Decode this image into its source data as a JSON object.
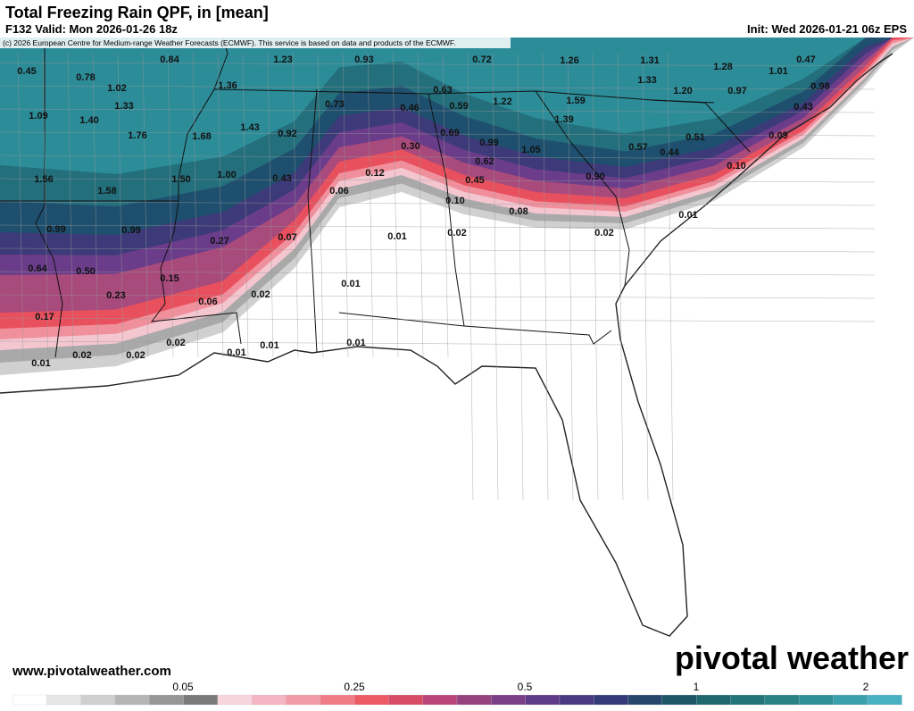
{
  "header": {
    "title": "Total Freezing Rain QPF, in [mean]",
    "valid": "F132 Valid: Mon 2026-01-26 18z",
    "init": "Init: Wed 2026-01-21 06z EPS",
    "copyright": "(c) 2026 European Centre for Medium-range Weather Forecasts (ECMWF). This service is based on data and products of the ECMWF."
  },
  "map": {
    "point_values": [
      "0.45",
      "0.84",
      "1.23",
      "0.93",
      "0.72",
      "1.26",
      "1.31",
      "1.28",
      "1.01",
      "0.47",
      "0.78",
      "1.02",
      "1.36",
      "0.63",
      "1.33",
      "1.20",
      "0.97",
      "0.98",
      "1.09",
      "1.33",
      "1.40",
      "0.73",
      "0.46",
      "0.59",
      "1.22",
      "1.59",
      "0.43",
      "1.39",
      "1.76",
      "1.68",
      "1.43",
      "0.92",
      "0.69",
      "0.99",
      "1.05",
      "0.57",
      "0.51",
      "0.44",
      "0.09",
      "0.30",
      "0.62",
      "1.56",
      "1.50",
      "1.00",
      "0.43",
      "0.12",
      "0.45",
      "0.90",
      "0.10",
      "1.58",
      "0.06",
      "0.10",
      "0.08",
      "0.01",
      "0.99",
      "0.99",
      "0.27",
      "0.07",
      "0.01",
      "0.02",
      "0.02",
      "0.64",
      "0.50",
      "0.15",
      "0.01",
      "0.23",
      "0.02",
      "0.06",
      "0.17",
      "0.02",
      "0.01",
      "0.01",
      "0.01",
      "0.01",
      "0.02",
      "0.02"
    ]
  },
  "colorbar": {
    "labels": [
      "0.05",
      "0.25",
      "0.5",
      "1",
      "2"
    ]
  },
  "footer": {
    "website": "www.pivotalweather.com",
    "logo": "pivotal weather"
  }
}
